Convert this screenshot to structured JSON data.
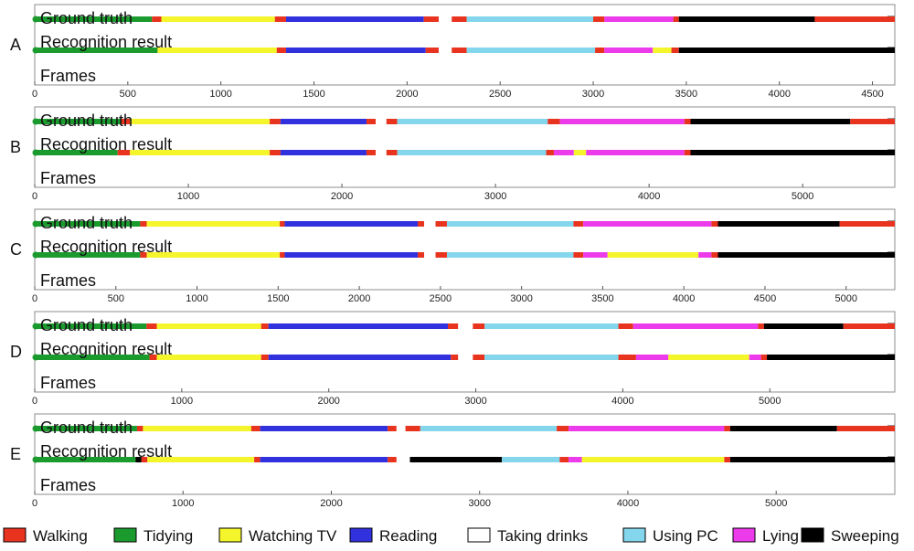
{
  "chart_data": [
    {
      "type": "timeline",
      "panel_label": "A",
      "track_labels": {
        "ground_truth": "Ground truth",
        "recognition": "Recognition result"
      },
      "xlabel": "Frames",
      "xlim": [
        0,
        4620
      ],
      "ticks": [
        0,
        500,
        1000,
        1500,
        2000,
        2500,
        3000,
        3500,
        4000,
        4500
      ],
      "ground_truth": [
        {
          "a": "Tidying",
          "s": 0,
          "e": 630
        },
        {
          "a": "Walking",
          "s": 630,
          "e": 680
        },
        {
          "a": "Watching TV",
          "s": 680,
          "e": 1290
        },
        {
          "a": "Walking",
          "s": 1290,
          "e": 1350
        },
        {
          "a": "Reading",
          "s": 1350,
          "e": 2090
        },
        {
          "a": "Walking",
          "s": 2090,
          "e": 2170
        },
        {
          "a": "Taking drinks",
          "s": 2170,
          "e": 2240
        },
        {
          "a": "Walking",
          "s": 2240,
          "e": 2320
        },
        {
          "a": "Using PC",
          "s": 2320,
          "e": 3000
        },
        {
          "a": "Walking",
          "s": 3000,
          "e": 3060
        },
        {
          "a": "Lying",
          "s": 3060,
          "e": 3430
        },
        {
          "a": "Walking",
          "s": 3430,
          "e": 3460
        },
        {
          "a": "Sweeping",
          "s": 3460,
          "e": 4190
        },
        {
          "a": "Walking",
          "s": 4190,
          "e": 4620
        }
      ],
      "recognition": [
        {
          "a": "Tidying",
          "s": 0,
          "e": 660
        },
        {
          "a": "Watching TV",
          "s": 660,
          "e": 1300
        },
        {
          "a": "Walking",
          "s": 1300,
          "e": 1350
        },
        {
          "a": "Reading",
          "s": 1350,
          "e": 2100
        },
        {
          "a": "Walking",
          "s": 2100,
          "e": 2170
        },
        {
          "a": "Taking drinks",
          "s": 2170,
          "e": 2240
        },
        {
          "a": "Walking",
          "s": 2240,
          "e": 2320
        },
        {
          "a": "Using PC",
          "s": 2320,
          "e": 3010
        },
        {
          "a": "Walking",
          "s": 3010,
          "e": 3060
        },
        {
          "a": "Lying",
          "s": 3060,
          "e": 3320
        },
        {
          "a": "Watching TV",
          "s": 3320,
          "e": 3420
        },
        {
          "a": "Walking",
          "s": 3420,
          "e": 3460
        },
        {
          "a": "Sweeping",
          "s": 3460,
          "e": 4620
        }
      ]
    },
    {
      "type": "timeline",
      "panel_label": "B",
      "track_labels": {
        "ground_truth": "Ground truth",
        "recognition": "Recognition result"
      },
      "xlabel": "Frames",
      "xlim": [
        0,
        5600
      ],
      "ticks": [
        0,
        1000,
        2000,
        3000,
        4000,
        5000
      ],
      "ground_truth": [
        {
          "a": "Tidying",
          "s": 0,
          "e": 560
        },
        {
          "a": "Walking",
          "s": 560,
          "e": 620
        },
        {
          "a": "Watching TV",
          "s": 620,
          "e": 1530
        },
        {
          "a": "Walking",
          "s": 1530,
          "e": 1600
        },
        {
          "a": "Reading",
          "s": 1600,
          "e": 2160
        },
        {
          "a": "Walking",
          "s": 2160,
          "e": 2220
        },
        {
          "a": "Taking drinks",
          "s": 2220,
          "e": 2290
        },
        {
          "a": "Walking",
          "s": 2290,
          "e": 2360
        },
        {
          "a": "Using PC",
          "s": 2360,
          "e": 3340
        },
        {
          "a": "Walking",
          "s": 3340,
          "e": 3420
        },
        {
          "a": "Lying",
          "s": 3420,
          "e": 4230
        },
        {
          "a": "Walking",
          "s": 4230,
          "e": 4270
        },
        {
          "a": "Sweeping",
          "s": 4270,
          "e": 5310
        },
        {
          "a": "Walking",
          "s": 5310,
          "e": 5600
        }
      ],
      "recognition": [
        {
          "a": "Tidying",
          "s": 0,
          "e": 540
        },
        {
          "a": "Walking",
          "s": 540,
          "e": 620
        },
        {
          "a": "Watching TV",
          "s": 620,
          "e": 1530
        },
        {
          "a": "Walking",
          "s": 1530,
          "e": 1600
        },
        {
          "a": "Reading",
          "s": 1600,
          "e": 2160
        },
        {
          "a": "Walking",
          "s": 2160,
          "e": 2220
        },
        {
          "a": "Taking drinks",
          "s": 2220,
          "e": 2290
        },
        {
          "a": "Walking",
          "s": 2290,
          "e": 2360
        },
        {
          "a": "Using PC",
          "s": 2360,
          "e": 3330
        },
        {
          "a": "Walking",
          "s": 3330,
          "e": 3380
        },
        {
          "a": "Lying",
          "s": 3380,
          "e": 3510
        },
        {
          "a": "Watching TV",
          "s": 3510,
          "e": 3590
        },
        {
          "a": "Lying",
          "s": 3590,
          "e": 4230
        },
        {
          "a": "Walking",
          "s": 4230,
          "e": 4270
        },
        {
          "a": "Sweeping",
          "s": 4270,
          "e": 5600
        }
      ]
    },
    {
      "type": "timeline",
      "panel_label": "C",
      "track_labels": {
        "ground_truth": "Ground truth",
        "recognition": "Recognition result"
      },
      "xlabel": "Frames",
      "xlim": [
        0,
        5300
      ],
      "ticks": [
        0,
        500,
        1000,
        1500,
        2000,
        2500,
        3000,
        3500,
        4000,
        4500,
        5000
      ],
      "ground_truth": [
        {
          "a": "Tidying",
          "s": 0,
          "e": 650
        },
        {
          "a": "Walking",
          "s": 650,
          "e": 690
        },
        {
          "a": "Watching TV",
          "s": 690,
          "e": 1510
        },
        {
          "a": "Walking",
          "s": 1510,
          "e": 1540
        },
        {
          "a": "Reading",
          "s": 1540,
          "e": 2360
        },
        {
          "a": "Walking",
          "s": 2360,
          "e": 2400
        },
        {
          "a": "Taking drinks",
          "s": 2400,
          "e": 2470
        },
        {
          "a": "Walking",
          "s": 2470,
          "e": 2540
        },
        {
          "a": "Using PC",
          "s": 2540,
          "e": 3320
        },
        {
          "a": "Walking",
          "s": 3320,
          "e": 3380
        },
        {
          "a": "Lying",
          "s": 3380,
          "e": 4170
        },
        {
          "a": "Walking",
          "s": 4170,
          "e": 4210
        },
        {
          "a": "Sweeping",
          "s": 4210,
          "e": 4960
        },
        {
          "a": "Walking",
          "s": 4960,
          "e": 5300
        }
      ],
      "recognition": [
        {
          "a": "Tidying",
          "s": 0,
          "e": 650
        },
        {
          "a": "Walking",
          "s": 650,
          "e": 690
        },
        {
          "a": "Watching TV",
          "s": 690,
          "e": 1510
        },
        {
          "a": "Walking",
          "s": 1510,
          "e": 1540
        },
        {
          "a": "Reading",
          "s": 1540,
          "e": 2360
        },
        {
          "a": "Walking",
          "s": 2360,
          "e": 2400
        },
        {
          "a": "Taking drinks",
          "s": 2400,
          "e": 2470
        },
        {
          "a": "Walking",
          "s": 2470,
          "e": 2540
        },
        {
          "a": "Using PC",
          "s": 2540,
          "e": 3320
        },
        {
          "a": "Walking",
          "s": 3320,
          "e": 3380
        },
        {
          "a": "Lying",
          "s": 3380,
          "e": 3530
        },
        {
          "a": "Watching TV",
          "s": 3530,
          "e": 4090
        },
        {
          "a": "Lying",
          "s": 4090,
          "e": 4170
        },
        {
          "a": "Walking",
          "s": 4170,
          "e": 4210
        },
        {
          "a": "Sweeping",
          "s": 4210,
          "e": 5300
        }
      ]
    },
    {
      "type": "timeline",
      "panel_label": "D",
      "track_labels": {
        "ground_truth": "Ground truth",
        "recognition": "Recognition result"
      },
      "xlabel": "Frames",
      "xlim": [
        0,
        5850
      ],
      "ticks": [
        0,
        1000,
        2000,
        3000,
        4000,
        5000
      ],
      "ground_truth": [
        {
          "a": "Tidying",
          "s": 0,
          "e": 760
        },
        {
          "a": "Walking",
          "s": 760,
          "e": 830
        },
        {
          "a": "Watching TV",
          "s": 830,
          "e": 1540
        },
        {
          "a": "Walking",
          "s": 1540,
          "e": 1590
        },
        {
          "a": "Reading",
          "s": 1590,
          "e": 2810
        },
        {
          "a": "Walking",
          "s": 2810,
          "e": 2880
        },
        {
          "a": "Taking drinks",
          "s": 2880,
          "e": 2980
        },
        {
          "a": "Walking",
          "s": 2980,
          "e": 3060
        },
        {
          "a": "Using PC",
          "s": 3060,
          "e": 3970
        },
        {
          "a": "Walking",
          "s": 3970,
          "e": 4070
        },
        {
          "a": "Lying",
          "s": 4070,
          "e": 4920
        },
        {
          "a": "Walking",
          "s": 4920,
          "e": 4960
        },
        {
          "a": "Sweeping",
          "s": 4960,
          "e": 5500
        },
        {
          "a": "Walking",
          "s": 5500,
          "e": 5850
        }
      ],
      "recognition": [
        {
          "a": "Tidying",
          "s": 0,
          "e": 780
        },
        {
          "a": "Walking",
          "s": 780,
          "e": 830
        },
        {
          "a": "Watching TV",
          "s": 830,
          "e": 1540
        },
        {
          "a": "Walking",
          "s": 1540,
          "e": 1590
        },
        {
          "a": "Reading",
          "s": 1590,
          "e": 2830
        },
        {
          "a": "Walking",
          "s": 2830,
          "e": 2880
        },
        {
          "a": "Taking drinks",
          "s": 2880,
          "e": 2980
        },
        {
          "a": "Walking",
          "s": 2980,
          "e": 3060
        },
        {
          "a": "Using PC",
          "s": 3060,
          "e": 3970
        },
        {
          "a": "Walking",
          "s": 3970,
          "e": 4090
        },
        {
          "a": "Lying",
          "s": 4090,
          "e": 4310
        },
        {
          "a": "Watching TV",
          "s": 4310,
          "e": 4860
        },
        {
          "a": "Lying",
          "s": 4860,
          "e": 4940
        },
        {
          "a": "Walking",
          "s": 4940,
          "e": 4980
        },
        {
          "a": "Sweeping",
          "s": 4980,
          "e": 5850
        }
      ]
    },
    {
      "type": "timeline",
      "panel_label": "E",
      "track_labels": {
        "ground_truth": "Ground truth",
        "recognition": "Recognition result"
      },
      "xlabel": "Frames",
      "xlim": [
        0,
        5800
      ],
      "ticks": [
        0,
        1000,
        2000,
        3000,
        4000,
        5000
      ],
      "ground_truth": [
        {
          "a": "Tidying",
          "s": 0,
          "e": 690
        },
        {
          "a": "Walking",
          "s": 690,
          "e": 730
        },
        {
          "a": "Watching TV",
          "s": 730,
          "e": 1460
        },
        {
          "a": "Walking",
          "s": 1460,
          "e": 1520
        },
        {
          "a": "Reading",
          "s": 1520,
          "e": 2380
        },
        {
          "a": "Walking",
          "s": 2380,
          "e": 2440
        },
        {
          "a": "Taking drinks",
          "s": 2440,
          "e": 2500
        },
        {
          "a": "Walking",
          "s": 2500,
          "e": 2600
        },
        {
          "a": "Using PC",
          "s": 2600,
          "e": 3520
        },
        {
          "a": "Walking",
          "s": 3520,
          "e": 3600
        },
        {
          "a": "Lying",
          "s": 3600,
          "e": 4650
        },
        {
          "a": "Walking",
          "s": 4650,
          "e": 4690
        },
        {
          "a": "Sweeping",
          "s": 4690,
          "e": 5410
        },
        {
          "a": "Walking",
          "s": 5410,
          "e": 5800
        }
      ],
      "recognition": [
        {
          "a": "Tidying",
          "s": 0,
          "e": 680
        },
        {
          "a": "Sweeping",
          "s": 680,
          "e": 720
        },
        {
          "a": "Walking",
          "s": 720,
          "e": 760
        },
        {
          "a": "Watching TV",
          "s": 760,
          "e": 1480
        },
        {
          "a": "Walking",
          "s": 1480,
          "e": 1520
        },
        {
          "a": "Reading",
          "s": 1520,
          "e": 2380
        },
        {
          "a": "Walking",
          "s": 2380,
          "e": 2440
        },
        {
          "a": "Taking drinks",
          "s": 2440,
          "e": 2530
        },
        {
          "a": "Sweeping",
          "s": 2530,
          "e": 3150
        },
        {
          "a": "Using PC",
          "s": 3150,
          "e": 3540
        },
        {
          "a": "Walking",
          "s": 3540,
          "e": 3600
        },
        {
          "a": "Lying",
          "s": 3600,
          "e": 3690
        },
        {
          "a": "Watching TV",
          "s": 3690,
          "e": 4650
        },
        {
          "a": "Walking",
          "s": 4650,
          "e": 4690
        },
        {
          "a": "Sweeping",
          "s": 4690,
          "e": 5800
        }
      ]
    }
  ],
  "legend": [
    {
      "label": "Walking",
      "color": "#e8331f"
    },
    {
      "label": "Tidying",
      "color": "#1b9a2e"
    },
    {
      "label": "Watching TV",
      "color": "#f5f52b"
    },
    {
      "label": "Reading",
      "color": "#3131dd"
    },
    {
      "label": "Taking drinks",
      "color": "#ffffff"
    },
    {
      "label": "Using PC",
      "color": "#84d6ec"
    },
    {
      "label": "Lying",
      "color": "#ec3bea"
    },
    {
      "label": "Sweeping",
      "color": "#000000"
    }
  ]
}
